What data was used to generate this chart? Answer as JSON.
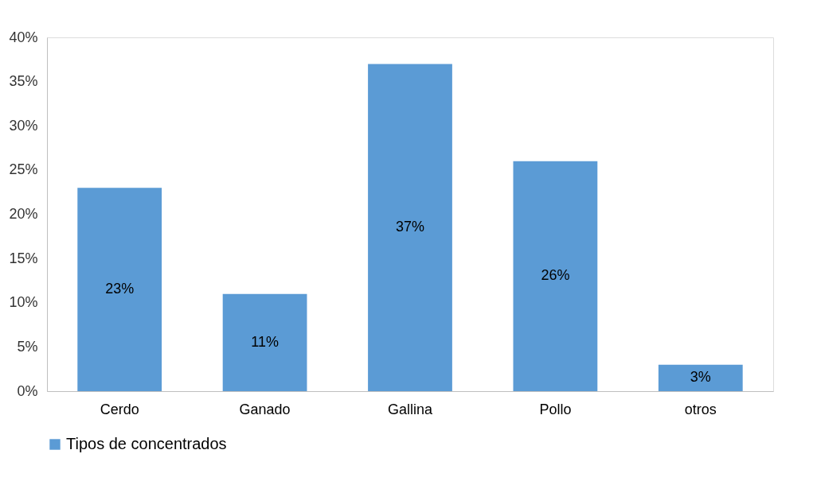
{
  "chart_data": {
    "type": "bar",
    "categories": [
      "Cerdo",
      "Ganado",
      "Gallina",
      "Pollo",
      "otros"
    ],
    "series": [
      {
        "name": "Tipos de concentrados",
        "color": "#5b9bd5",
        "values": [
          23,
          11,
          37,
          26,
          3
        ],
        "value_labels": [
          "23%",
          "11%",
          "37%",
          "26%",
          "3%"
        ]
      }
    ],
    "ylim": [
      0,
      40
    ],
    "yticks": [
      {
        "value": 0,
        "label": "0%"
      },
      {
        "value": 5,
        "label": "5%"
      },
      {
        "value": 10,
        "label": "10%"
      },
      {
        "value": 15,
        "label": "15%"
      },
      {
        "value": 20,
        "label": "20%"
      },
      {
        "value": 25,
        "label": "25%"
      },
      {
        "value": 30,
        "label": "30%"
      },
      {
        "value": 35,
        "label": "35%"
      },
      {
        "value": 40,
        "label": "40%"
      }
    ],
    "grid": false,
    "legend": "bottom"
  }
}
